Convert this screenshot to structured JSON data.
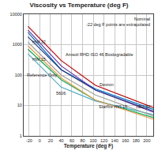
{
  "chart_data": {
    "type": "line",
    "title": "Viscosity vs Temperature (deg F)",
    "x_label": "Temperature (deg F)",
    "annotations": [
      "Nominal",
      "-22 deg F points are extrapolated"
    ],
    "x": [
      -22,
      40,
      104,
      212
    ],
    "series": [
      {
        "name": "Amsoil RHD ISO 46 Biodegradable",
        "color": "#c00000",
        "values": [
          4000,
          300,
          46,
          8.5
        ]
      },
      {
        "name": "Dexron",
        "color": "#0070c0",
        "values": [
          2500,
          150,
          35,
          7.5
        ]
      },
      {
        "name": "ISO 32",
        "color": "#7030a0",
        "values": [
          3000,
          200,
          32,
          6
        ]
      },
      {
        "name": "HW 32",
        "color": "#1f3a93",
        "values": [
          1800,
          150,
          32,
          6.5
        ]
      },
      {
        "name": "HW 15",
        "color": "#00b050",
        "values": [
          700,
          70,
          15,
          4
        ]
      },
      {
        "name": "5606",
        "color": "#4bacc6",
        "values": [
          500,
          40,
          14,
          5
        ]
      },
      {
        "name": "Starfire HVI 15",
        "color": "#f79646",
        "values": [
          900,
          80,
          15,
          3.5
        ]
      },
      {
        "name": "Reference Only",
        "color": "#a0a0a0",
        "values": [
          1200,
          100,
          22,
          4.5
        ]
      }
    ],
    "xlim": [
      -30,
      212
    ],
    "xticks": [
      -20,
      0,
      20,
      40,
      60,
      80,
      100,
      120,
      140,
      160,
      180,
      200
    ],
    "ylim": [
      1,
      10000
    ],
    "yticks": [
      1,
      10,
      100,
      1000,
      10000
    ],
    "log": "y",
    "grid": true
  }
}
